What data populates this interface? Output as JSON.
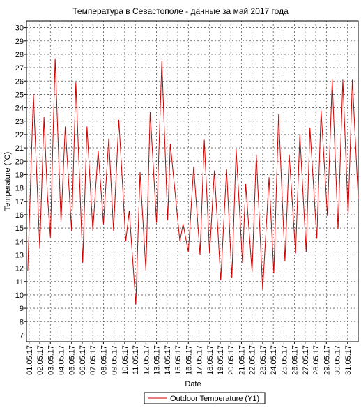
{
  "chart_data": {
    "type": "line",
    "title": "Температура в Севастополе - данные за май 2017 года",
    "xlabel": "Date",
    "ylabel": "Temperature (°C)",
    "x": [
      0.87,
      1.4,
      2.0,
      2.4,
      2.72,
      3.0,
      3.45,
      4.0,
      4.4,
      5.0,
      5.4,
      6.05,
      6.45,
      7.0,
      7.5,
      8.0,
      8.5,
      8.95,
      9.45,
      10.1,
      10.43,
      11.05,
      11.45,
      12.0,
      12.4,
      13.0,
      13.5,
      14.05,
      14.3,
      15.2,
      15.5,
      16.0,
      16.5,
      17.1,
      17.5,
      18.0,
      18.45,
      19.05,
      19.6,
      20.1,
      20.5,
      21.1,
      21.4,
      22.0,
      22.4,
      23.0,
      23.6,
      24.05,
      24.5,
      25.1,
      25.5,
      26.1,
      26.5,
      27.1,
      27.45,
      28.1,
      28.5,
      29.1,
      29.55,
      30.1,
      30.55,
      31.05,
      31.45,
      32.0
    ],
    "series": [
      {
        "name": "Outdoor Temperature (Y1)",
        "color": "#cc0000",
        "values": [
          11.8,
          25,
          13.5,
          23.3,
          17.5,
          14.3,
          27.7,
          15.4,
          22.6,
          14.8,
          25.9,
          12.4,
          22.6,
          14.8,
          20.8,
          15.3,
          21.7,
          14.8,
          23.1,
          14,
          16.3,
          9.3,
          19.2,
          11.8,
          23.7,
          15.4,
          27.5,
          15.6,
          21.3,
          14,
          15.3,
          13.2,
          19.6,
          13,
          21.6,
          13.1,
          19.3,
          11.1,
          19.4,
          11.3,
          20.9,
          12.4,
          18.3,
          11.7,
          20.5,
          10.4,
          18.8,
          11.6,
          23.5,
          12.5,
          20.5,
          13.1,
          22,
          13.2,
          22.5,
          14.2,
          23.8,
          15.9,
          26.1,
          14.9,
          26.1,
          16,
          26.1,
          17.2
        ]
      }
    ],
    "xlim": [
      0.75,
      32
    ],
    "ylim": [
      6.5,
      30.5
    ],
    "yticks": [
      7,
      8,
      9,
      10,
      11,
      12,
      13,
      14,
      15,
      16,
      17,
      18,
      19,
      20,
      21,
      22,
      23,
      24,
      25,
      26,
      27,
      28,
      29,
      30
    ],
    "xticks": [
      {
        "value": 1,
        "label": "01.05.17"
      },
      {
        "value": 2,
        "label": "02.05.17"
      },
      {
        "value": 3,
        "label": "03.05.17"
      },
      {
        "value": 4,
        "label": "04.05.17"
      },
      {
        "value": 5,
        "label": "05.05.17"
      },
      {
        "value": 6,
        "label": "06.05.17"
      },
      {
        "value": 7,
        "label": "07.05.17"
      },
      {
        "value": 8,
        "label": "08.05.17"
      },
      {
        "value": 9,
        "label": "09.05.17"
      },
      {
        "value": 10,
        "label": "10.05.17"
      },
      {
        "value": 11,
        "label": "11.05.17"
      },
      {
        "value": 12,
        "label": "12.05.17"
      },
      {
        "value": 13,
        "label": "13.05.17"
      },
      {
        "value": 14,
        "label": "14.05.17"
      },
      {
        "value": 15,
        "label": "15.05.17"
      },
      {
        "value": 16,
        "label": "16.05.17"
      },
      {
        "value": 17,
        "label": "17.05.17"
      },
      {
        "value": 18,
        "label": "18.05.17"
      },
      {
        "value": 19,
        "label": "19.05.17"
      },
      {
        "value": 20,
        "label": "20.05.17"
      },
      {
        "value": 21,
        "label": "21.05.17"
      },
      {
        "value": 22,
        "label": "22.05.17"
      },
      {
        "value": 23,
        "label": "23.05.17"
      },
      {
        "value": 24,
        "label": "24.05.17"
      },
      {
        "value": 25,
        "label": "25.05.17"
      },
      {
        "value": 26,
        "label": "26.05.17"
      },
      {
        "value": 27,
        "label": "27.05.17"
      },
      {
        "value": 28,
        "label": "28.05.17"
      },
      {
        "value": 29,
        "label": "29.05.17"
      },
      {
        "value": 30,
        "label": "30.05.17"
      },
      {
        "value": 31,
        "label": "31.05.17"
      }
    ],
    "grid": true
  }
}
